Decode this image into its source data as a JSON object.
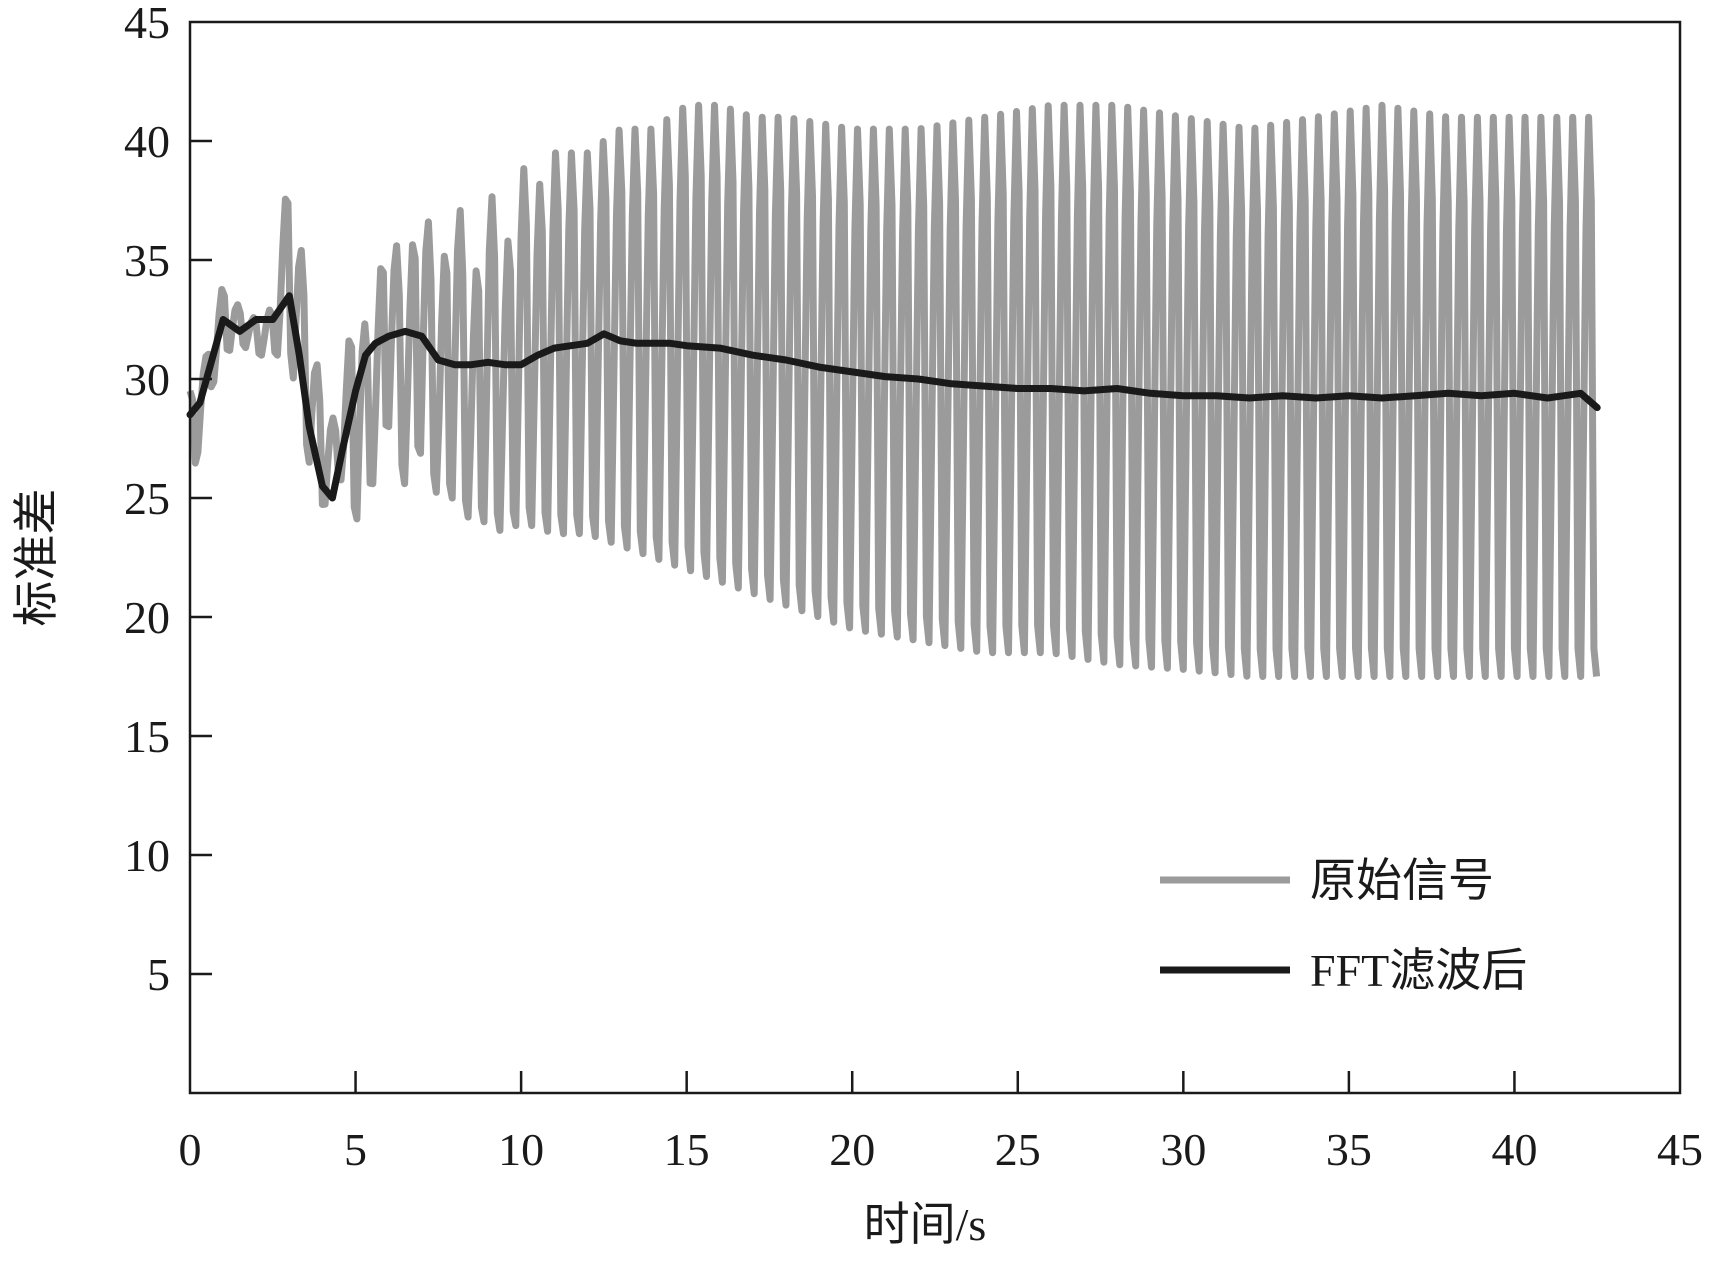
{
  "chart_data": {
    "type": "line",
    "title": "",
    "xlabel": "时间/s",
    "ylabel": "标准差",
    "xlim": [
      0,
      45
    ],
    "ylim": [
      0,
      45
    ],
    "xticks": [
      0,
      5,
      10,
      15,
      20,
      25,
      30,
      35,
      40,
      45
    ],
    "yticks": [
      5,
      10,
      15,
      20,
      25,
      30,
      35,
      40,
      45
    ],
    "grid": false,
    "legend_position": "bottom-right",
    "series": [
      {
        "name": "原始信号",
        "color": "#9b9b9b",
        "style": "rapid oscillation between upper and lower envelope",
        "upper_envelope": {
          "x": [
            0,
            0.5,
            1,
            1.5,
            2,
            2.5,
            3,
            3.5,
            4,
            4.5,
            5,
            5.5,
            6,
            6.5,
            7,
            7.5,
            8,
            8.5,
            9,
            9.5,
            10,
            10.5,
            11,
            12,
            13,
            14,
            15,
            16,
            17,
            18,
            20,
            22,
            24,
            26,
            28,
            30,
            32,
            34,
            36,
            38,
            40,
            42.5
          ],
          "y": [
            29.5,
            31,
            34,
            33,
            32.5,
            33,
            39,
            34,
            29,
            28,
            34,
            31,
            38,
            33,
            39,
            33,
            39,
            33,
            38.5,
            35,
            39,
            38,
            39.5,
            39.5,
            40.5,
            40.5,
            41.5,
            41.5,
            41,
            41,
            40.5,
            40.5,
            41,
            41.5,
            41.5,
            41,
            40.5,
            41,
            41.5,
            41,
            41,
            41
          ]
        },
        "lower_envelope": {
          "x": [
            0,
            0.5,
            1,
            1.5,
            2,
            2.5,
            3,
            3.5,
            4,
            4.5,
            5,
            5.5,
            6,
            6.5,
            7,
            7.5,
            8,
            8.5,
            9,
            9.5,
            10,
            11,
            12,
            13,
            14,
            15,
            16,
            17,
            18,
            20,
            22,
            24,
            26,
            28,
            30,
            32,
            34,
            36,
            38,
            40,
            42.5
          ],
          "y": [
            25,
            29,
            31,
            31.5,
            31,
            31,
            31,
            27,
            24.5,
            26,
            24,
            25.5,
            28,
            25.5,
            27,
            25,
            25,
            24,
            24,
            23.5,
            24,
            23.5,
            23.5,
            23,
            22.5,
            22,
            21.5,
            21,
            20.5,
            19.5,
            19,
            18.5,
            18.5,
            18,
            17.8,
            17.5,
            17.5,
            17.5,
            17.5,
            17.5,
            17.5
          ]
        }
      },
      {
        "name": "FFT滤波后",
        "color": "#1a1a1a",
        "x": [
          0,
          0.3,
          0.7,
          1,
          1.5,
          2,
          2.5,
          3,
          3.3,
          3.6,
          4,
          4.3,
          4.6,
          5,
          5.3,
          5.6,
          6,
          6.5,
          7,
          7.5,
          8,
          8.5,
          9,
          9.5,
          10,
          10.5,
          11,
          11.5,
          12,
          12.5,
          13,
          13.5,
          14,
          14.5,
          15,
          16,
          17,
          18,
          19,
          20,
          21,
          22,
          23,
          24,
          25,
          26,
          27,
          28,
          29,
          30,
          31,
          32,
          33,
          34,
          35,
          36,
          37,
          38,
          39,
          40,
          41,
          41.5,
          42,
          42.5
        ],
        "y": [
          28.5,
          29,
          31,
          32.5,
          32,
          32.5,
          32.5,
          33.5,
          31,
          28,
          25.5,
          25,
          27,
          29.5,
          31,
          31.5,
          31.8,
          32,
          31.8,
          30.8,
          30.6,
          30.6,
          30.7,
          30.6,
          30.6,
          31,
          31.3,
          31.4,
          31.5,
          31.9,
          31.6,
          31.5,
          31.5,
          31.5,
          31.4,
          31.3,
          31,
          30.8,
          30.5,
          30.3,
          30.1,
          30,
          29.8,
          29.7,
          29.6,
          29.6,
          29.5,
          29.6,
          29.4,
          29.3,
          29.3,
          29.2,
          29.3,
          29.2,
          29.3,
          29.2,
          29.3,
          29.4,
          29.3,
          29.4,
          29.2,
          29.3,
          29.4,
          28.8
        ]
      }
    ]
  }
}
